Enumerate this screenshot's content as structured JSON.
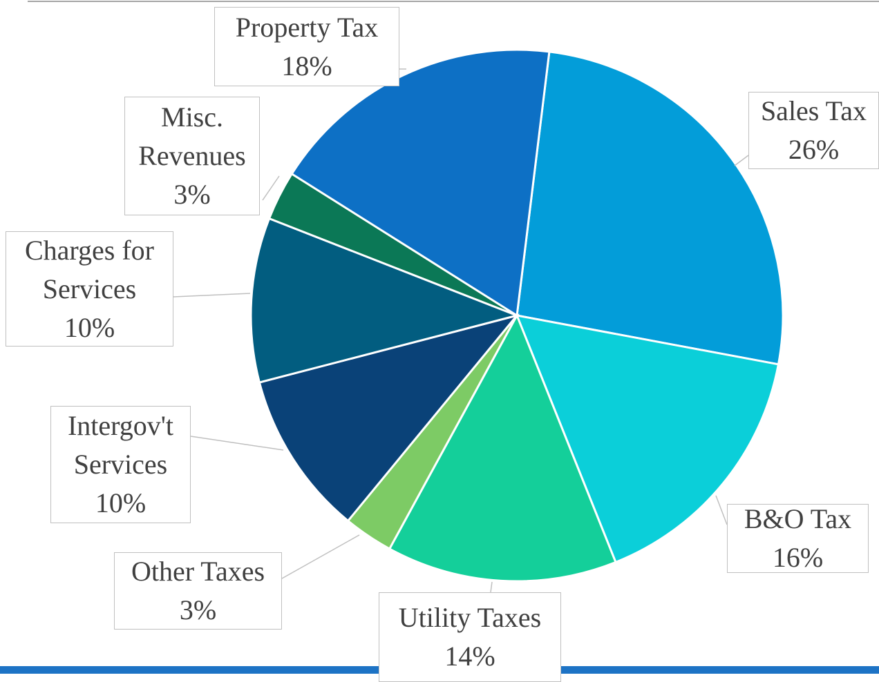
{
  "chart_data": {
    "type": "pie",
    "categories": [
      "Sales Tax",
      "B&O Tax",
      "Utility Taxes",
      "Other Taxes",
      "Intergov't Services",
      "Charges for Services",
      "Misc. Revenues",
      "Property Tax"
    ],
    "values": [
      26,
      16,
      14,
      3,
      10,
      10,
      3,
      18
    ],
    "value_labels": [
      "26%",
      "16%",
      "14%",
      "3%",
      "10%",
      "10%",
      "3%",
      "18%"
    ],
    "colors": [
      "#039dd9",
      "#0bcfd9",
      "#14cf9a",
      "#7dcb65",
      "#0a4278",
      "#025d80",
      "#0b7856",
      "#0d70c5"
    ]
  }
}
